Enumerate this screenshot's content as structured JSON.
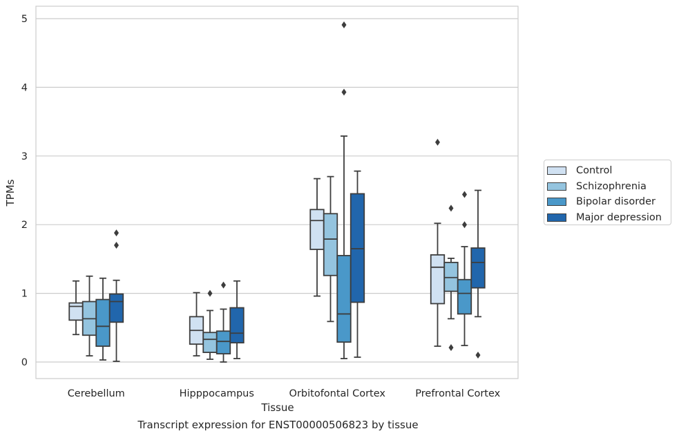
{
  "caption": "Transcript expression for ENST00000506823 by tissue",
  "chart_data": {
    "type": "boxplot",
    "title": "",
    "xlabel": "Tissue",
    "ylabel": "TPMs",
    "ylim": [
      -0.24,
      5.18
    ],
    "yticks": [
      0,
      1,
      2,
      3,
      4,
      5
    ],
    "grid": "horizontal",
    "legend_position": "right",
    "categories": [
      "Cerebellum",
      "Hipppocampus",
      "Orbitofontal Cortex",
      "Prefrontal Cortex"
    ],
    "series": [
      {
        "name": "Control",
        "color": "#d0e1f2",
        "boxes": [
          {
            "whislo": 0.4,
            "q1": 0.61,
            "med": 0.81,
            "q3": 0.86,
            "whishi": 1.18,
            "fliers": []
          },
          {
            "whislo": 0.09,
            "q1": 0.26,
            "med": 0.46,
            "q3": 0.66,
            "whishi": 1.01,
            "fliers": []
          },
          {
            "whislo": 0.96,
            "q1": 1.64,
            "med": 2.06,
            "q3": 2.22,
            "whishi": 2.67,
            "fliers": []
          },
          {
            "whislo": 0.23,
            "q1": 0.85,
            "med": 1.38,
            "q3": 1.56,
            "whishi": 2.02,
            "fliers": [
              3.2
            ]
          }
        ]
      },
      {
        "name": "Schizophrenia",
        "color": "#94c4df",
        "boxes": [
          {
            "whislo": 0.09,
            "q1": 0.39,
            "med": 0.63,
            "q3": 0.88,
            "whishi": 1.25,
            "fliers": []
          },
          {
            "whislo": 0.04,
            "q1": 0.14,
            "med": 0.33,
            "q3": 0.43,
            "whishi": 0.75,
            "fliers": [
              1.0
            ]
          },
          {
            "whislo": 0.59,
            "q1": 1.26,
            "med": 1.79,
            "q3": 2.16,
            "whishi": 2.7,
            "fliers": []
          },
          {
            "whislo": 0.63,
            "q1": 1.03,
            "med": 1.23,
            "q3": 1.45,
            "whishi": 1.51,
            "fliers": [
              2.24,
              0.21
            ]
          }
        ]
      },
      {
        "name": "Bipolar disorder",
        "color": "#4a98c9",
        "boxes": [
          {
            "whislo": 0.03,
            "q1": 0.23,
            "med": 0.52,
            "q3": 0.91,
            "whishi": 1.22,
            "fliers": []
          },
          {
            "whislo": 0.0,
            "q1": 0.12,
            "med": 0.3,
            "q3": 0.45,
            "whishi": 0.77,
            "fliers": [
              1.12
            ]
          },
          {
            "whislo": 0.05,
            "q1": 0.29,
            "med": 0.7,
            "q3": 1.55,
            "whishi": 3.29,
            "fliers": [
              3.93,
              4.91
            ]
          },
          {
            "whislo": 0.24,
            "q1": 0.7,
            "med": 1.0,
            "q3": 1.2,
            "whishi": 1.68,
            "fliers": [
              2.44,
              2.0
            ]
          }
        ]
      },
      {
        "name": "Major depression",
        "color": "#2166ac",
        "boxes": [
          {
            "whislo": 0.01,
            "q1": 0.58,
            "med": 0.88,
            "q3": 0.99,
            "whishi": 1.19,
            "fliers": [
              1.88,
              1.7
            ]
          },
          {
            "whislo": 0.05,
            "q1": 0.28,
            "med": 0.42,
            "q3": 0.79,
            "whishi": 1.18,
            "fliers": []
          },
          {
            "whislo": 0.07,
            "q1": 0.87,
            "med": 1.65,
            "q3": 2.45,
            "whishi": 2.78,
            "fliers": []
          },
          {
            "whislo": 0.66,
            "q1": 1.08,
            "med": 1.45,
            "q3": 1.66,
            "whishi": 2.5,
            "fliers": [
              0.1
            ]
          }
        ]
      }
    ]
  }
}
